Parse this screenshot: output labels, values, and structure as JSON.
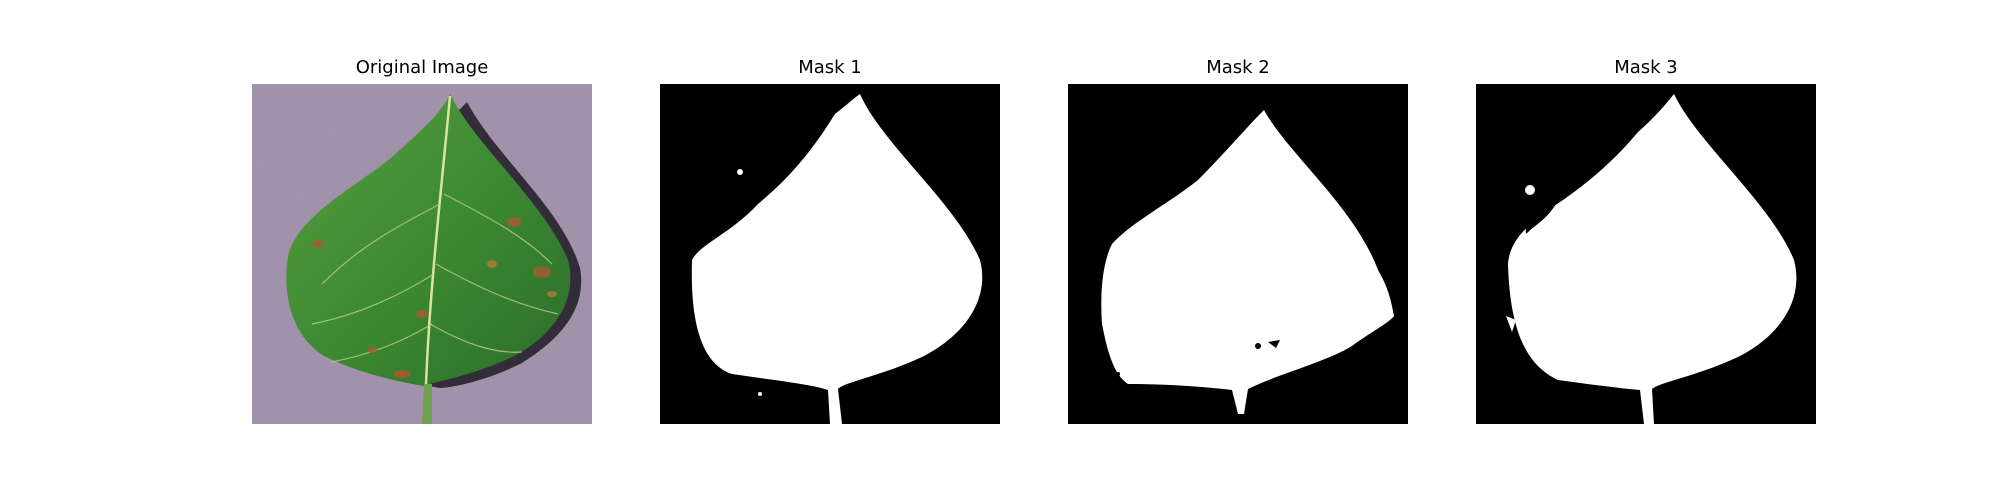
{
  "panels": [
    {
      "title": "Original Image",
      "kind": "photo"
    },
    {
      "title": "Mask 1",
      "kind": "mask"
    },
    {
      "title": "Mask 2",
      "kind": "mask"
    },
    {
      "title": "Mask 3",
      "kind": "mask"
    }
  ],
  "colors": {
    "background": "#ffffff",
    "mask_background": "#000000",
    "mask_foreground": "#ffffff",
    "photo_backdrop": "#9b8aa5",
    "leaf_green": "#3f8d34",
    "leaf_vein": "#d7e5a0",
    "leaf_shadow": "#1f1b23",
    "lesion_brown": "#a85b2d"
  }
}
